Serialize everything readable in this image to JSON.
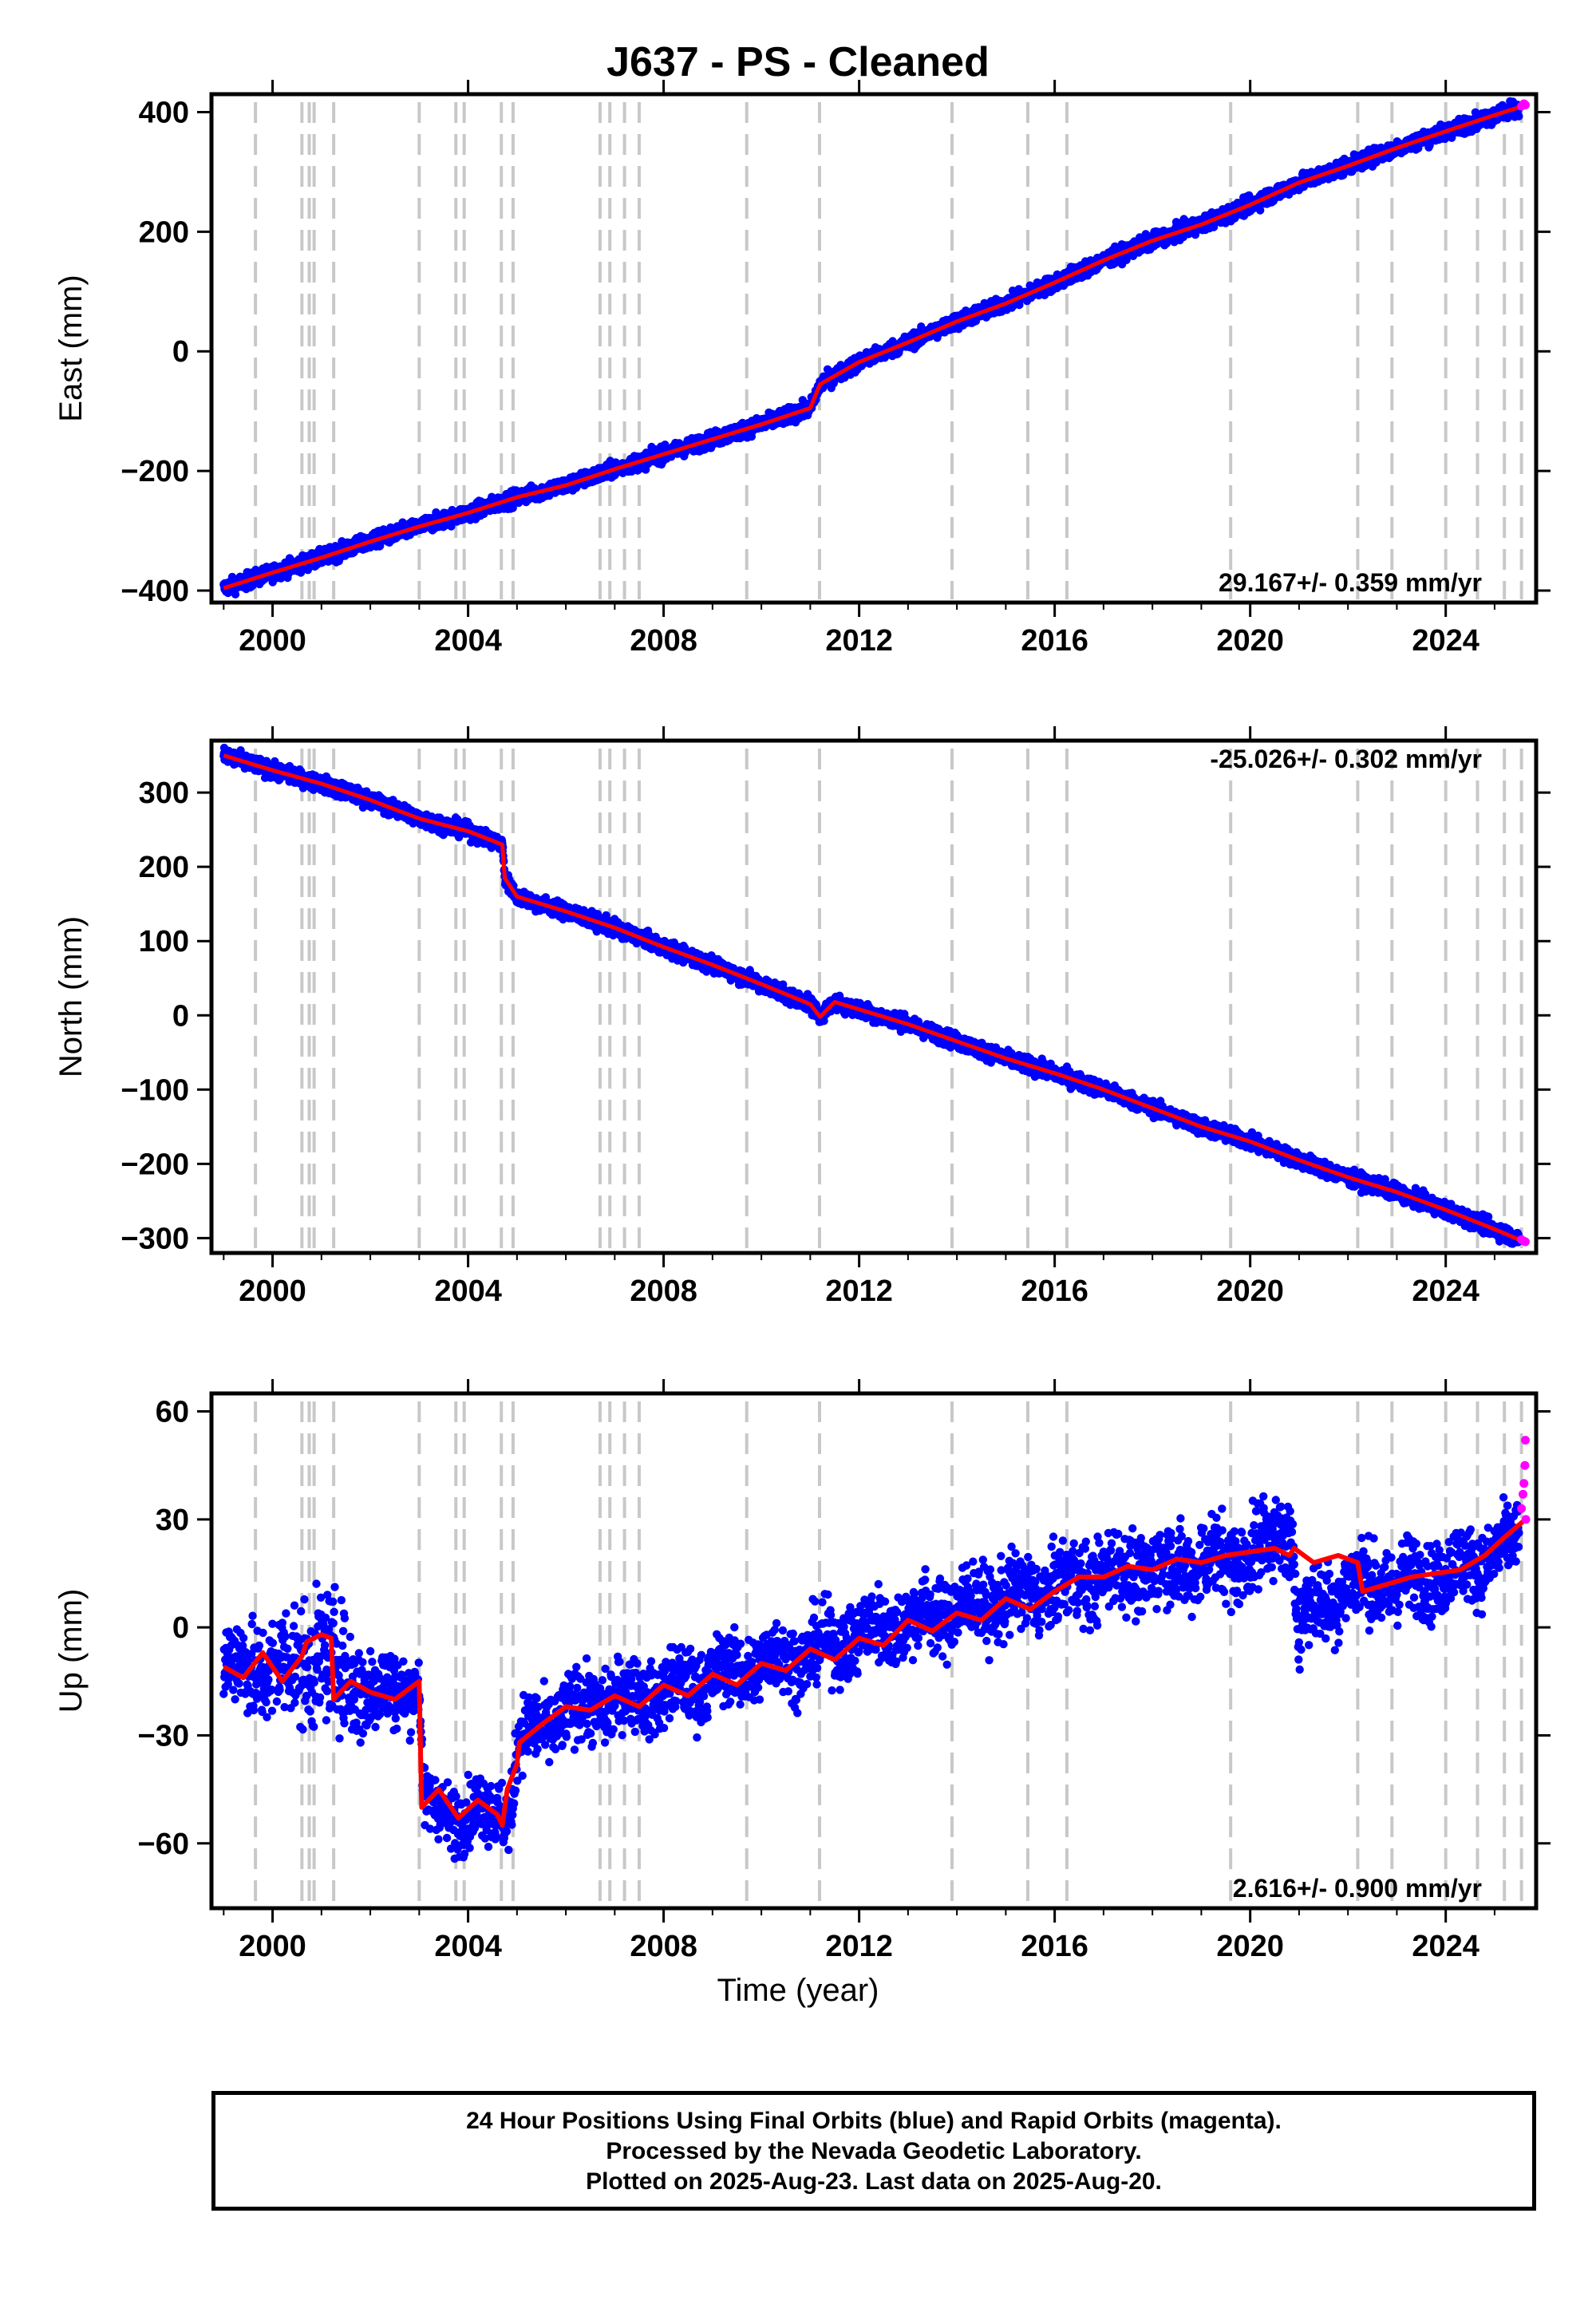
{
  "title": "J637  - PS - Cleaned",
  "xlabel": "Time (year)",
  "footer": {
    "line1": "24 Hour Positions Using Final Orbits (blue) and Rapid Orbits (magenta).",
    "line2": "Processed by the Nevada Geodetic Laboratory.",
    "line3": "Plotted on 2025-Aug-23. Last data on 2025-Aug-20."
  },
  "colors": {
    "final_orbits": "#0000ff",
    "rapid_orbits": "#ff00ff",
    "model": "#ff0000",
    "event_lines": "#c8c8c8"
  },
  "chart_data": [
    {
      "type": "scatter",
      "panel": "east",
      "ylabel": "East (mm)",
      "xlim": [
        1998.75,
        2025.85
      ],
      "ylim": [
        -420,
        430
      ],
      "xticks": [
        2000,
        2004,
        2008,
        2012,
        2016,
        2020,
        2024
      ],
      "xtick_labels": [
        "2000",
        "2004",
        "2008",
        "2012",
        "2016",
        "2020",
        "2024"
      ],
      "yticks": [
        -400,
        -200,
        0,
        200,
        400
      ],
      "ytick_labels": [
        "−400",
        "−200",
        "0",
        "200",
        "400"
      ],
      "rate_label": "29.167+/- 0.359 mm/yr",
      "rate_label_position": "bottom-right",
      "trend": {
        "start": [
          1999.0,
          -396
        ],
        "end": [
          2025.63,
          412
        ]
      },
      "offsets": [
        {
          "x": 2011.19,
          "y_before": -95,
          "y_after": -55
        }
      ],
      "series": [
        {
          "name": "Final Orbits",
          "color": "#0000ff",
          "x": [
            1999.0,
            2000.0,
            2001.0,
            2002.0,
            2003.0,
            2004.0,
            2005.0,
            2006.0,
            2007.0,
            2008.0,
            2009.0,
            2010.0,
            2011.0,
            2011.2,
            2012.0,
            2013.0,
            2014.0,
            2015.0,
            2016.0,
            2017.0,
            2018.0,
            2019.0,
            2020.0,
            2021.0,
            2022.0,
            2023.0,
            2024.0,
            2025.0,
            2025.5
          ],
          "y": [
            -396,
            -370,
            -345,
            -318,
            -293,
            -270,
            -244,
            -224,
            -197,
            -172,
            -147,
            -122,
            -95,
            -55,
            -18,
            15,
            50,
            80,
            115,
            152,
            185,
            212,
            245,
            282,
            310,
            340,
            368,
            395,
            408
          ]
        },
        {
          "name": "Rapid Orbits",
          "color": "#ff00ff",
          "x": [
            2025.55,
            2025.6,
            2025.63
          ],
          "y": [
            410,
            414,
            412
          ]
        }
      ]
    },
    {
      "type": "scatter",
      "panel": "north",
      "ylabel": "North (mm)",
      "xlim": [
        1998.75,
        2025.85
      ],
      "ylim": [
        -320,
        370
      ],
      "xticks": [
        2000,
        2004,
        2008,
        2012,
        2016,
        2020,
        2024
      ],
      "xtick_labels": [
        "2000",
        "2004",
        "2008",
        "2012",
        "2016",
        "2020",
        "2024"
      ],
      "yticks": [
        -300,
        -200,
        -100,
        0,
        100,
        200,
        300
      ],
      "ytick_labels": [
        "−300",
        "−200",
        "−100",
        "0",
        "100",
        "200",
        "300"
      ],
      "rate_label": "-25.026+/- 0.302 mm/yr",
      "rate_label_position": "top-right",
      "series": [
        {
          "name": "Final Orbits",
          "color": "#0000ff",
          "x": [
            1999.0,
            2000.0,
            2001.0,
            2002.0,
            2003.0,
            2004.0,
            2004.7,
            2004.75,
            2005.0,
            2006.0,
            2007.0,
            2008.0,
            2009.0,
            2010.0,
            2011.0,
            2011.2,
            2011.5,
            2012.0,
            2013.0,
            2014.0,
            2015.0,
            2016.0,
            2017.0,
            2018.0,
            2019.0,
            2020.0,
            2021.0,
            2022.0,
            2023.0,
            2024.0,
            2025.0,
            2025.5
          ],
          "y": [
            350,
            330,
            312,
            290,
            265,
            248,
            230,
            185,
            160,
            140,
            118,
            92,
            68,
            42,
            15,
            -2,
            18,
            8,
            -12,
            -35,
            -58,
            -78,
            -100,
            -125,
            -150,
            -170,
            -195,
            -218,
            -238,
            -262,
            -288,
            -302
          ]
        },
        {
          "name": "Rapid Orbits",
          "color": "#ff00ff",
          "x": [
            2025.55,
            2025.6,
            2025.63
          ],
          "y": [
            -302,
            -304,
            -305
          ]
        }
      ]
    },
    {
      "type": "scatter",
      "panel": "up",
      "ylabel": "Up (mm)",
      "xlim": [
        1998.75,
        2025.85
      ],
      "ylim": [
        -78,
        65
      ],
      "xticks": [
        2000,
        2004,
        2008,
        2012,
        2016,
        2020,
        2024
      ],
      "xtick_labels": [
        "2000",
        "2004",
        "2008",
        "2012",
        "2016",
        "2020",
        "2024"
      ],
      "yticks": [
        -60,
        -30,
        0,
        30,
        60
      ],
      "ytick_labels": [
        "−60",
        "−30",
        "0",
        "30",
        "60"
      ],
      "rate_label": "2.616+/- 0.900 mm/yr",
      "rate_label_position": "bottom-right",
      "scatter_half_width": [
        [
          1999,
          14
        ],
        [
          2001,
          22
        ],
        [
          2003,
          10
        ],
        [
          2005,
          12
        ],
        [
          2010,
          12
        ],
        [
          2020,
          14
        ],
        [
          2025.6,
          12
        ]
      ],
      "model": {
        "x": [
          1999.0,
          1999.4,
          1999.8,
          2000.2,
          2000.6,
          2000.7,
          2001.0,
          2001.2,
          2001.25,
          2001.6,
          2002.0,
          2002.5,
          2003.0,
          2003.05,
          2003.4,
          2003.8,
          2004.2,
          2004.6,
          2004.7,
          2004.8,
          2005.0,
          2005.05,
          2005.5,
          2006.0,
          2006.5,
          2007.0,
          2007.5,
          2008.0,
          2008.5,
          2009.0,
          2009.5,
          2010.0,
          2010.5,
          2011.0,
          2011.5,
          2012.0,
          2012.5,
          2013.0,
          2013.5,
          2014.0,
          2014.5,
          2015.0,
          2015.5,
          2016.0,
          2016.5,
          2017.0,
          2017.5,
          2018.0,
          2018.5,
          2019.0,
          2019.5,
          2020.0,
          2020.5,
          2020.8,
          2020.9,
          2021.3,
          2021.8,
          2022.2,
          2022.3,
          2022.8,
          2023.3,
          2023.8,
          2024.3,
          2024.8,
          2025.2,
          2025.63
        ],
        "y": [
          -11,
          -14,
          -7,
          -15,
          -8,
          -4,
          -2,
          -3,
          -20,
          -15,
          -18,
          -20,
          -15,
          -50,
          -45,
          -53,
          -48,
          -52,
          -55,
          -45,
          -38,
          -32,
          -27,
          -22,
          -23,
          -19,
          -22,
          -16,
          -19,
          -13,
          -16,
          -10,
          -12,
          -6,
          -9,
          -3,
          -5,
          2,
          -1,
          4,
          2,
          8,
          5,
          10,
          14,
          14,
          17,
          16,
          19,
          18,
          20,
          21,
          22,
          20,
          22,
          18,
          20,
          18,
          10,
          12,
          14,
          15,
          16,
          20,
          25,
          30
        ]
      },
      "series": [
        {
          "name": "Final Orbits",
          "color": "#0000ff",
          "x": [
            1999.0,
            2000.0,
            2001.0,
            2002.0,
            2003.0,
            2003.1,
            2004.0,
            2004.9,
            2005.0,
            2006.0,
            2007.0,
            2008.0,
            2009.0,
            2010.0,
            2011.0,
            2012.0,
            2013.0,
            2014.0,
            2015.0,
            2016.0,
            2017.0,
            2018.0,
            2019.0,
            2020.0,
            2020.8,
            2021.0,
            2022.0,
            2023.0,
            2024.0,
            2025.0,
            2025.5
          ],
          "y": [
            -10,
            -12,
            -8,
            -18,
            -16,
            -50,
            -52,
            -50,
            -32,
            -24,
            -20,
            -18,
            -14,
            -10,
            -7,
            -2,
            2,
            5,
            8,
            11,
            15,
            16,
            18,
            20,
            28,
            2,
            12,
            12,
            15,
            20,
            24
          ]
        },
        {
          "name": "Rapid Orbits",
          "color": "#ff00ff",
          "x": [
            2025.55,
            2025.58,
            2025.6,
            2025.62,
            2025.63,
            2025.64
          ],
          "y": [
            33,
            37,
            40,
            45,
            52,
            30
          ]
        }
      ]
    }
  ],
  "event_lines": [
    1999.65,
    2000.6,
    2000.75,
    2000.85,
    2001.25,
    2003.0,
    2003.75,
    2003.92,
    2004.68,
    2004.92,
    2006.7,
    2006.9,
    2007.2,
    2007.5,
    2009.7,
    2011.19,
    2013.9,
    2015.45,
    2016.25,
    2019.6,
    2022.2,
    2022.9,
    2024.0,
    2024.65,
    2025.2,
    2025.55
  ]
}
